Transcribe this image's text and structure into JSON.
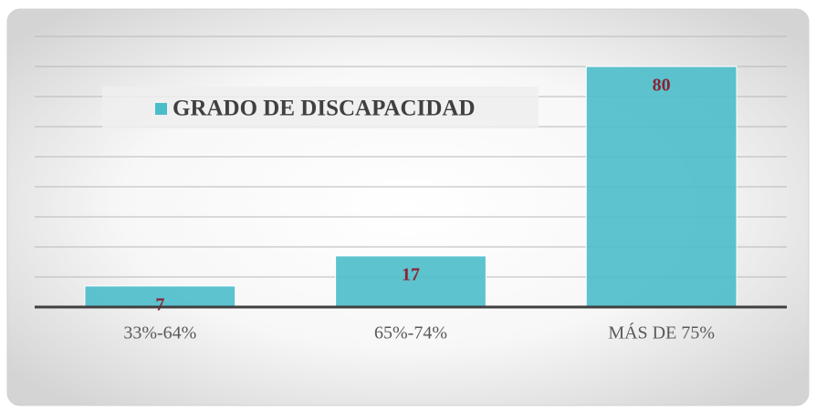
{
  "chart_data": {
    "type": "bar",
    "categories": [
      "33%-64%",
      "65%-74%",
      "MÁS DE 75%"
    ],
    "series": [
      {
        "name": "GRADO DE DISCAPACIDAD",
        "color": "#4bbdca",
        "values": [
          7,
          17,
          80
        ]
      }
    ],
    "ylim": [
      0,
      90
    ],
    "yticks": [
      0,
      10,
      20,
      30,
      40,
      50,
      60,
      70,
      80,
      90
    ],
    "grid": true,
    "legend": "top-left"
  }
}
